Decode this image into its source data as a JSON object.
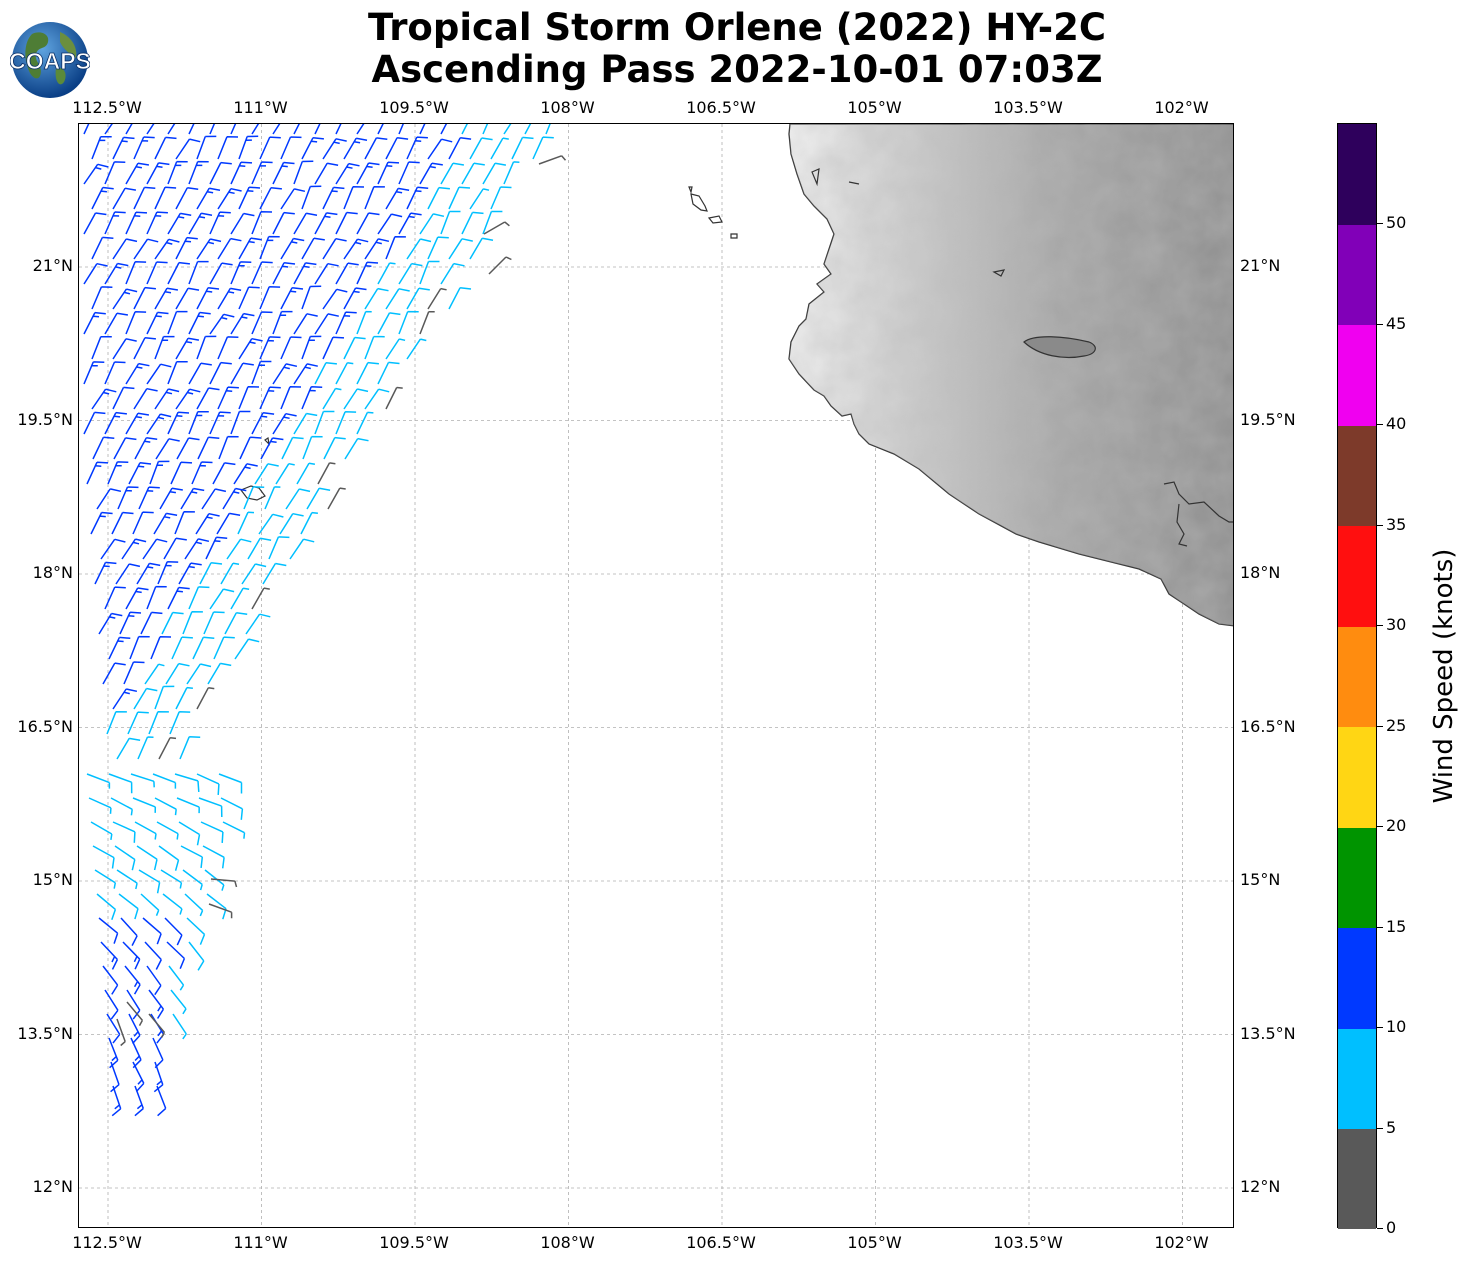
{
  "title_line1": "Tropical Storm Orlene (2022) HY-2C",
  "title_line2": "Ascending Pass 2022-10-01 07:03Z",
  "logo_text": "COAPS",
  "lon_labels": [
    "112.5°W",
    "111°W",
    "109.5°W",
    "108°W",
    "106.5°W",
    "105°W",
    "103.5°W",
    "102°W"
  ],
  "lat_labels": [
    "21°N",
    "19.5°N",
    "18°N",
    "16.5°N",
    "15°N",
    "13.5°N",
    "12°N"
  ],
  "colorbar": {
    "title": "Wind Speed (knots)",
    "ticks": [
      "0",
      "5",
      "10",
      "15",
      "20",
      "25",
      "30",
      "35",
      "40",
      "45",
      "50"
    ],
    "bins": [
      {
        "min": 0,
        "max": 5,
        "color": "#595959"
      },
      {
        "min": 5,
        "max": 10,
        "color": "#00bfff"
      },
      {
        "min": 10,
        "max": 15,
        "color": "#0039ff"
      },
      {
        "min": 15,
        "max": 20,
        "color": "#009400"
      },
      {
        "min": 20,
        "max": 25,
        "color": "#ffd614"
      },
      {
        "min": 25,
        "max": 30,
        "color": "#ff8c0f"
      },
      {
        "min": 30,
        "max": 35,
        "color": "#ff0f0f"
      },
      {
        "min": 35,
        "max": 40,
        "color": "#7d3a2a"
      },
      {
        "min": 40,
        "max": 45,
        "color": "#f000f0"
      },
      {
        "min": 45,
        "max": 50,
        "color": "#8100b8"
      },
      {
        "min": 50,
        "max": 55,
        "color": "#2e005c"
      }
    ]
  },
  "map": {
    "lon_range": [
      -112.7,
      -101.4
    ],
    "lat_range": [
      11.6,
      22.4
    ],
    "land_color": "#9a9a9a",
    "coast_color": "#333333"
  }
}
